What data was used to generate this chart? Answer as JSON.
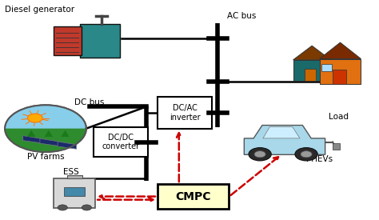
{
  "bg_color": "#ffffff",
  "labels": {
    "diesel_generator": "Diesel generator",
    "ac_bus": "AC bus",
    "load": "Load",
    "dc_bus": "DC bus",
    "dc_ac_inverter": "DC/AC\ninverter",
    "pv_farms": "PV farms",
    "dc_dc_converter": "DC/DC\nconverter",
    "ess": "ESS",
    "cmpc": "CMPC",
    "phevs": "PHEVs"
  },
  "colors": {
    "box_edge": "#000000",
    "bus_line": "#000000",
    "solid_line": "#000000",
    "dashed_arrow": "#cc0000",
    "cmpc_box_fill": "#ffffcc",
    "box_fill": "#ffffff",
    "text_color": "#000000"
  }
}
